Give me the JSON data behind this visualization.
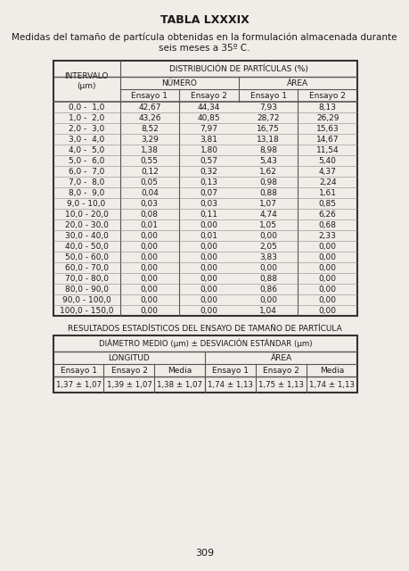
{
  "title": "TABLA LXXXIX",
  "subtitle1": "Medidas del tamaño de partícula obtenidas en la formulación almacenada durante",
  "subtitle2": "seis meses a 35º C.",
  "table1_header1": "DISTRIBUCIÓN DE PARTÍCULAS (%)",
  "table1_header2a": "NÚMERO",
  "table1_header2b": "ÁREA",
  "table1_col_intervalo": "INTERVALO\n(µm)",
  "table1_subheaders": [
    "Ensayo 1",
    "Ensayo 2",
    "Ensayo 1",
    "Ensayo 2"
  ],
  "table1_rows": [
    [
      "0,0 -  1,0",
      "42,67",
      "44,34",
      "7,93",
      "8,13"
    ],
    [
      "1,0 -  2,0",
      "43,26",
      "40,85",
      "28,72",
      "26,29"
    ],
    [
      "2,0 -  3,0",
      "8,52",
      "7,97",
      "16,75",
      "15,63"
    ],
    [
      "3,0 -  4,0",
      "3,29",
      "3,81",
      "13,18",
      "14,67"
    ],
    [
      "4,0 -  5,0",
      "1,38",
      "1,80",
      "8,98",
      "11,54"
    ],
    [
      "5,0 -  6,0",
      "0,55",
      "0,57",
      "5,43",
      "5,40"
    ],
    [
      "6,0 -  7,0",
      "0,12",
      "0,32",
      "1,62",
      "4,37"
    ],
    [
      "7,0 -  8,0",
      "0,05",
      "0,13",
      "0,98",
      "2,24"
    ],
    [
      "8,0 -  9,0",
      "0,04",
      "0,07",
      "0,88",
      "1,61"
    ],
    [
      "9,0 - 10,0",
      "0,03",
      "0,03",
      "1,07",
      "0,85"
    ],
    [
      "10,0 - 20,0",
      "0,08",
      "0,11",
      "4,74",
      "6,26"
    ],
    [
      "20,0 - 30,0",
      "0,01",
      "0,00",
      "1,05",
      "0,68"
    ],
    [
      "30,0 - 40,0",
      "0,00",
      "0,01",
      "0,00",
      "2,33"
    ],
    [
      "40,0 - 50,0",
      "0,00",
      "0,00",
      "2,05",
      "0,00"
    ],
    [
      "50,0 - 60,0",
      "0,00",
      "0,00",
      "3,83",
      "0,00"
    ],
    [
      "60,0 - 70,0",
      "0,00",
      "0,00",
      "0,00",
      "0,00"
    ],
    [
      "70,0 - 80,0",
      "0,00",
      "0,00",
      "0,88",
      "0,00"
    ],
    [
      "80,0 - 90,0",
      "0,00",
      "0,00",
      "0,86",
      "0,00"
    ],
    [
      "90,0 - 100,0",
      "0,00",
      "0,00",
      "0,00",
      "0,00"
    ],
    [
      "100,0 - 150,0",
      "0,00",
      "0,00",
      "1,04",
      "0,00"
    ]
  ],
  "table2_title": "RESULTADOS ESTADÍSTICOS DEL ENSAYO DE TAMAÑO DE PARTÍCULA",
  "table2_header": "DIÁMETRO MEDIO (µm) ± DESVIACIÓN ESTÁNDAR (µm)",
  "table2_header2a": "LONGITUD",
  "table2_header2b": "ÁREA",
  "table2_subheaders": [
    "Ensayo 1",
    "Ensayo 2",
    "Media",
    "Ensayo 1",
    "Ensayo 2",
    "Media"
  ],
  "table2_row": [
    "1,37 ± 1,07",
    "1,39 ± 1,07",
    "1,38 ± 1,07",
    "1,74 ± 1,13",
    "1,75 ± 1,13",
    "1,74 ± 1,13"
  ],
  "page_number": "309",
  "bg_color": "#f0ede8",
  "text_color": "#1a1a1a"
}
